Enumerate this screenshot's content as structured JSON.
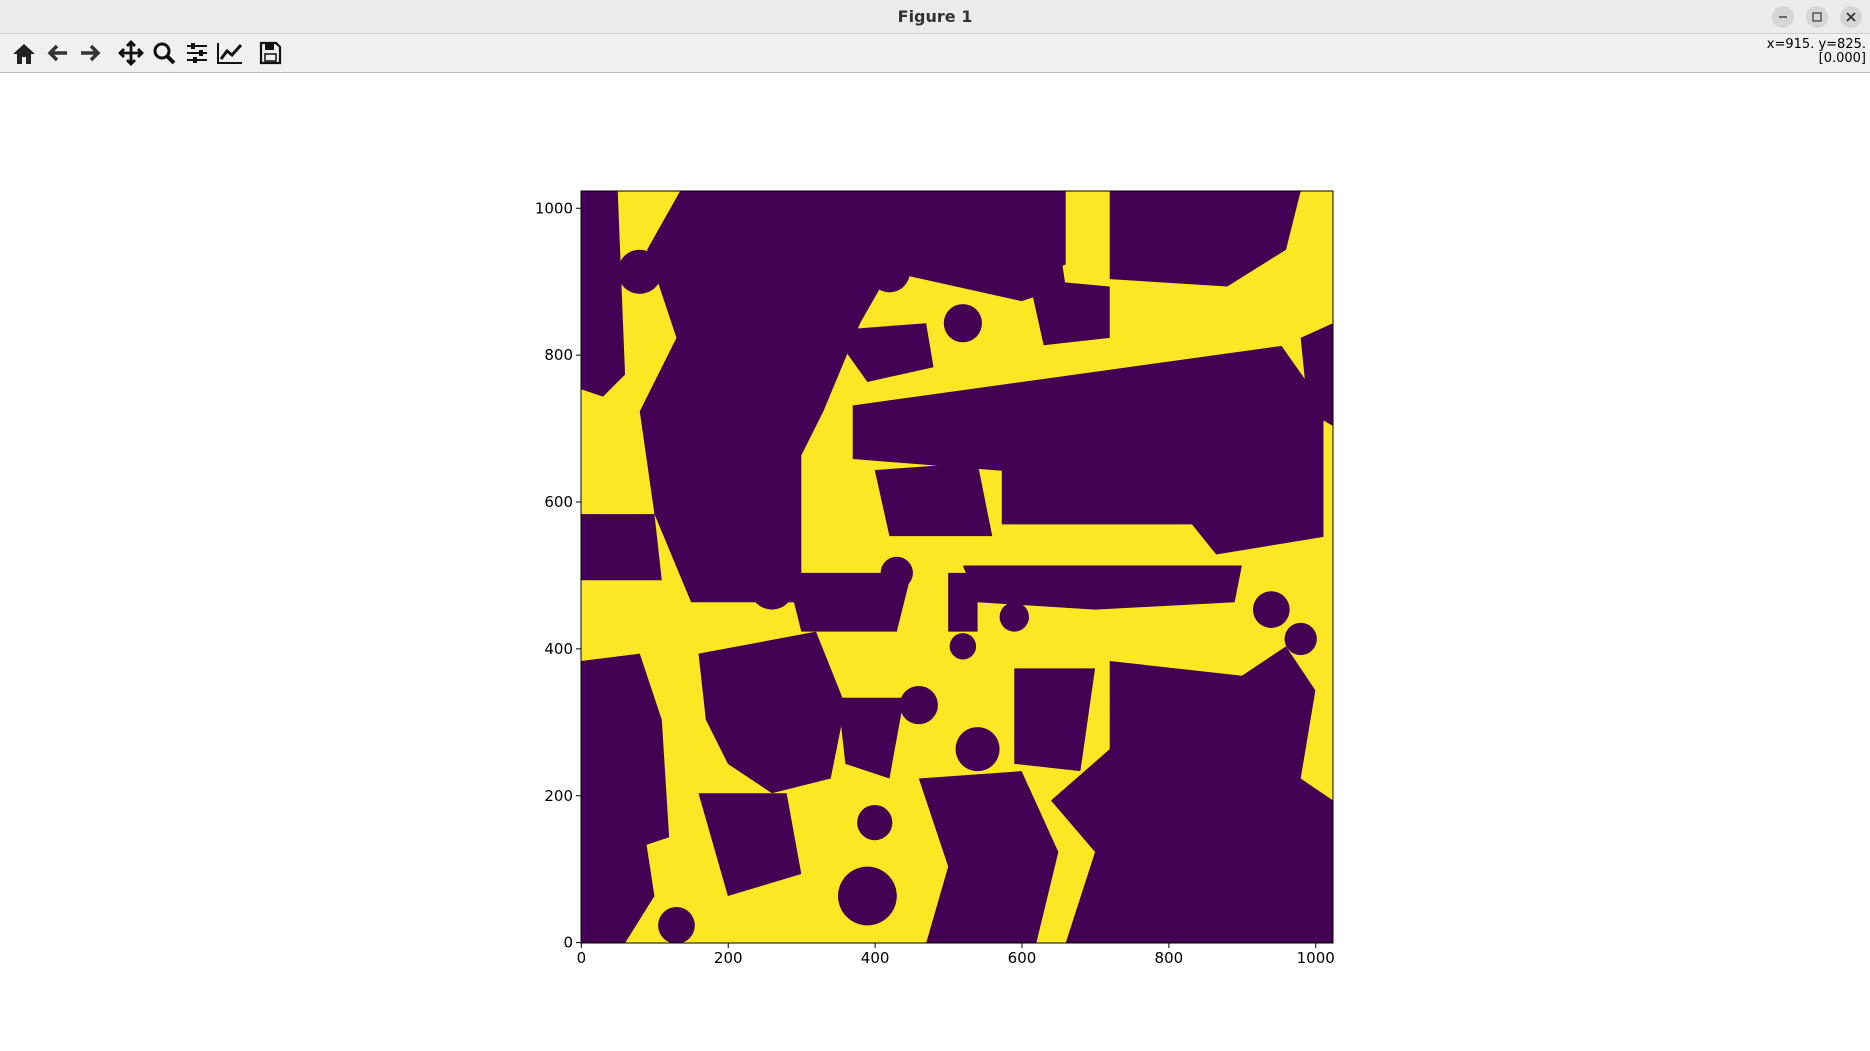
{
  "window": {
    "title": "Figure 1"
  },
  "status": {
    "line1": "x=915. y=825.",
    "line2": "[0.000]"
  },
  "chart_data": {
    "type": "image",
    "xlim": [
      -0.5,
      1023.5
    ],
    "ylim": [
      -0.5,
      1023.5
    ],
    "xticks": [
      0,
      200,
      400,
      600,
      800,
      1000
    ],
    "yticks": [
      0,
      200,
      400,
      600,
      800,
      1000
    ],
    "colors": [
      "#440154",
      "#fde725"
    ]
  }
}
